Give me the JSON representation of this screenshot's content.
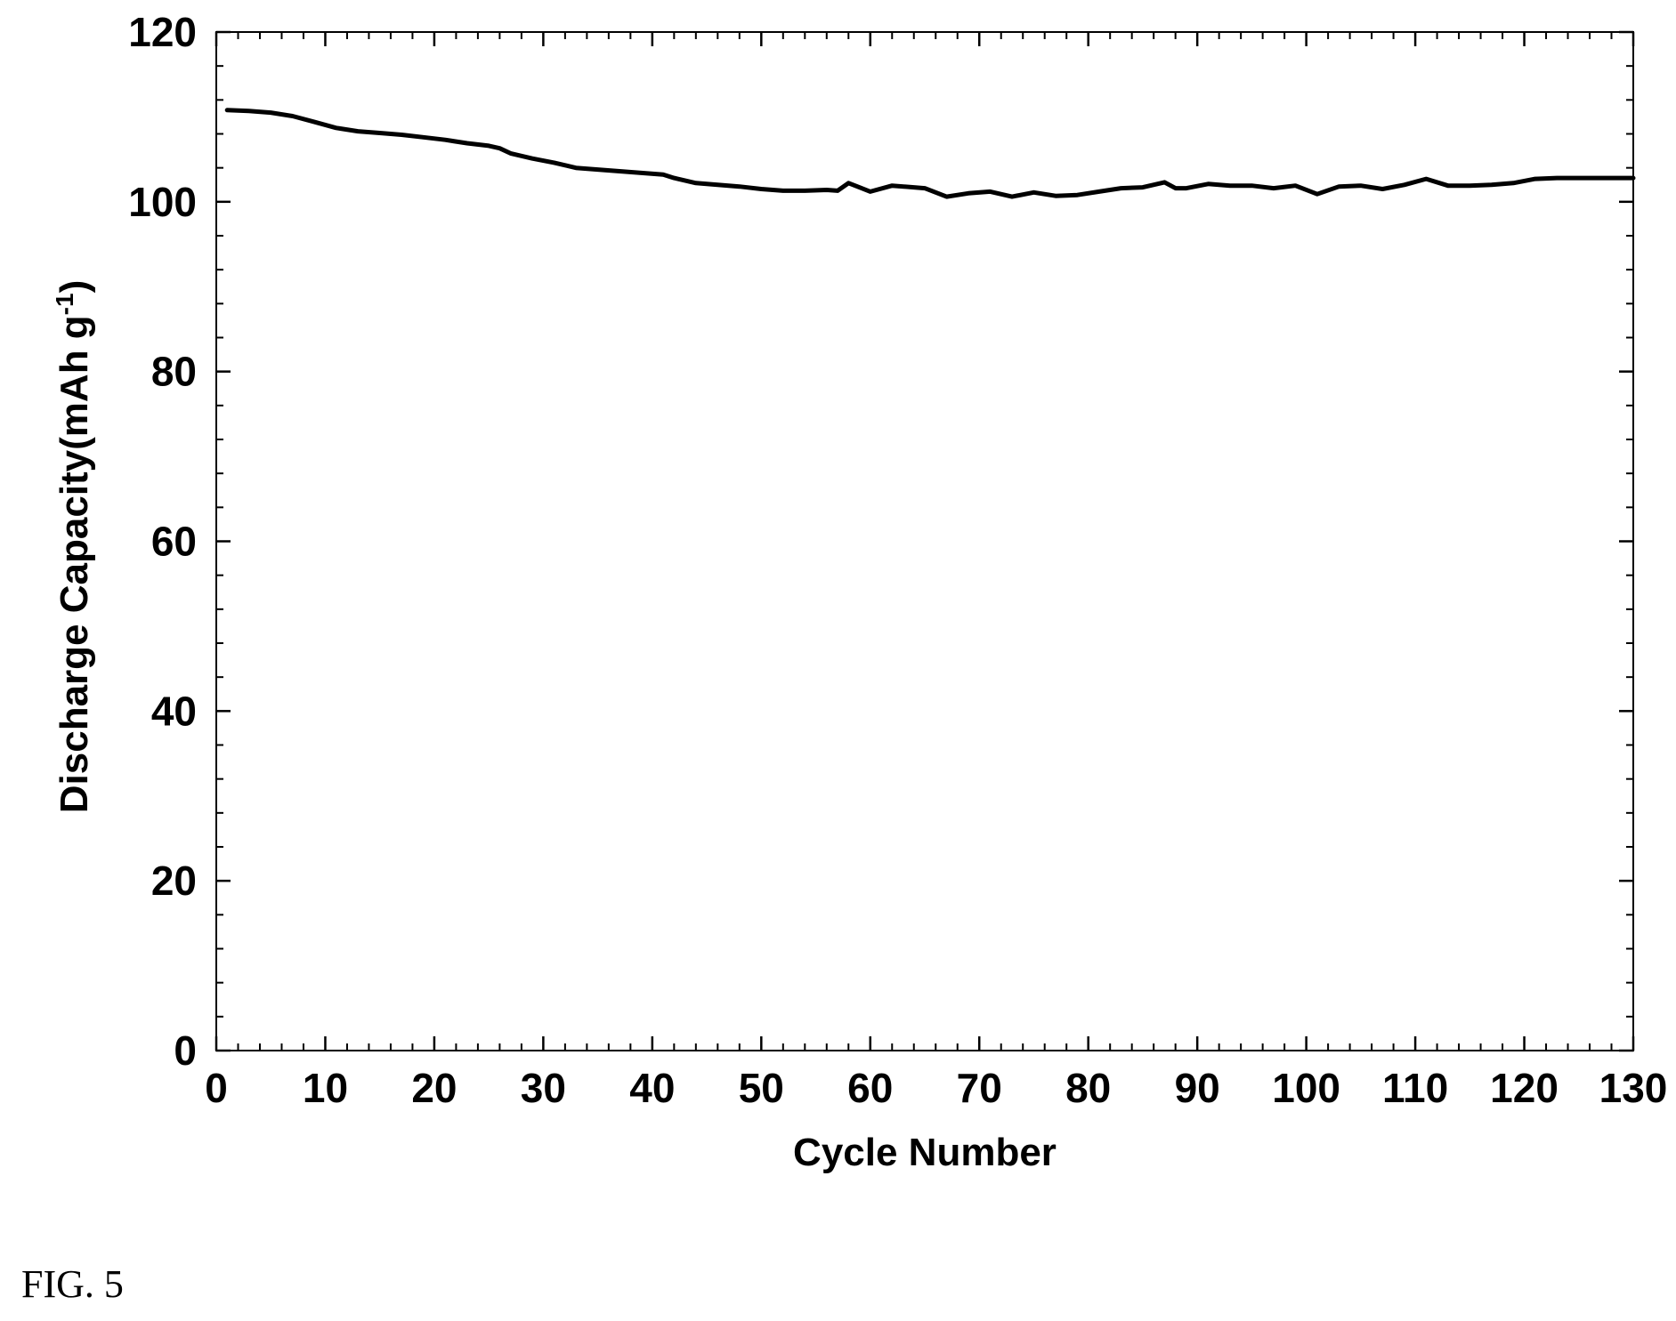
{
  "figure": {
    "caption": "FIG. 5"
  },
  "chart_data": {
    "type": "line",
    "title": "",
    "xlabel": "Cycle Number",
    "ylabel": {
      "main": "Discharge Capacity(mAh g",
      "superscript": "-1",
      "close": ")"
    },
    "xlim": [
      0,
      130
    ],
    "ylim": [
      0,
      120
    ],
    "xticks": [
      0,
      10,
      20,
      30,
      40,
      50,
      60,
      70,
      80,
      90,
      100,
      110,
      120,
      130
    ],
    "yticks": [
      0,
      20,
      40,
      60,
      80,
      100,
      120
    ],
    "x_minor_step": 2,
    "y_minor_step": 4,
    "grid": false,
    "legend": "none",
    "line_color": "#000000",
    "series": [
      {
        "x": [
          1,
          3,
          5,
          7,
          9,
          11,
          13,
          15,
          17,
          19,
          21,
          23,
          25,
          26,
          27,
          29,
          31,
          33,
          35,
          37,
          39,
          41,
          42,
          44,
          46,
          48,
          50,
          52,
          54,
          56,
          57,
          58,
          59,
          60,
          62,
          64,
          65,
          67,
          69,
          71,
          73,
          75,
          77,
          79,
          81,
          83,
          85,
          87,
          88,
          89,
          91,
          93,
          95,
          97,
          99,
          101,
          103,
          105,
          107,
          109,
          111,
          113,
          115,
          117,
          119,
          121,
          123,
          125,
          127,
          130
        ],
        "values": [
          110.8,
          110.7,
          110.5,
          110.1,
          109.4,
          108.7,
          108.3,
          108.1,
          107.9,
          107.6,
          107.3,
          106.9,
          106.6,
          106.3,
          105.7,
          105.1,
          104.6,
          104.0,
          103.8,
          103.6,
          103.4,
          103.2,
          102.8,
          102.2,
          102.0,
          101.8,
          101.5,
          101.3,
          101.3,
          101.4,
          101.3,
          102.2,
          101.7,
          101.2,
          101.9,
          101.7,
          101.6,
          100.6,
          101.0,
          101.2,
          100.6,
          101.1,
          100.7,
          100.8,
          101.2,
          101.6,
          101.7,
          102.3,
          101.6,
          101.6,
          102.1,
          101.9,
          101.9,
          101.6,
          101.9,
          100.9,
          101.8,
          101.9,
          101.5,
          102.0,
          102.7,
          101.9,
          101.9,
          102.0,
          102.2,
          102.7,
          102.8,
          102.8,
          102.8,
          102.8
        ]
      }
    ]
  }
}
